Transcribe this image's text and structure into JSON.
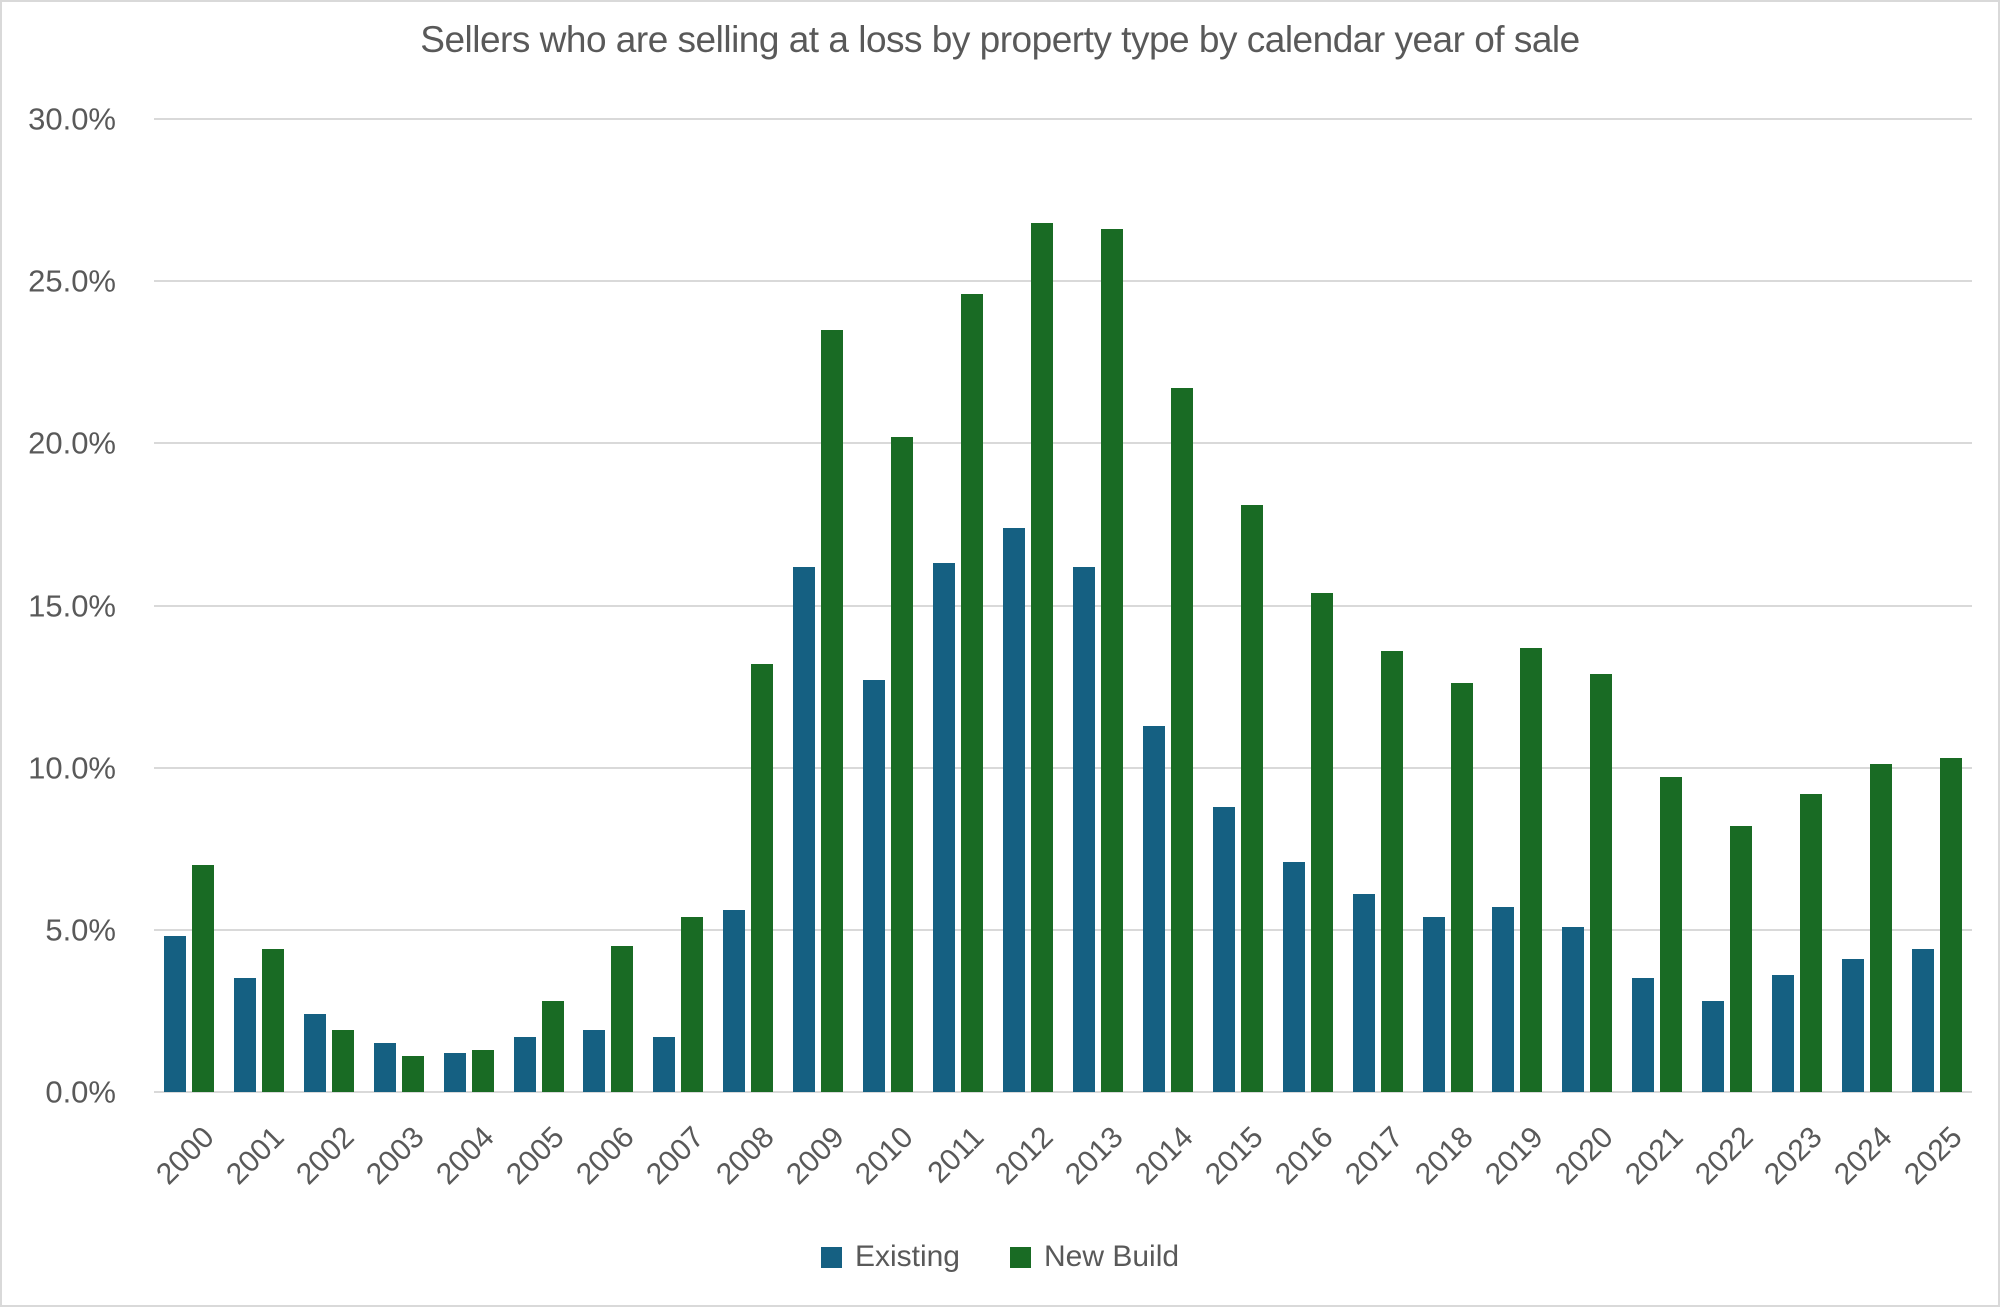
{
  "chart_data": {
    "type": "bar",
    "title": "Sellers who are selling at a loss by property type by calendar year of sale",
    "categories": [
      "2000",
      "2001",
      "2002",
      "2003",
      "2004",
      "2005",
      "2006",
      "2007",
      "2008",
      "2009",
      "2010",
      "2011",
      "2012",
      "2013",
      "2014",
      "2015",
      "2016",
      "2017",
      "2018",
      "2019",
      "2020",
      "2021",
      "2022",
      "2023",
      "2024",
      "2025"
    ],
    "series": [
      {
        "name": "Existing",
        "color": "#156082",
        "values": [
          4.8,
          3.5,
          2.4,
          1.5,
          1.2,
          1.7,
          1.9,
          1.7,
          5.6,
          16.2,
          12.7,
          16.3,
          17.4,
          16.2,
          11.3,
          8.8,
          7.1,
          6.1,
          5.4,
          5.7,
          5.1,
          3.5,
          2.8,
          3.6,
          4.1,
          4.4
        ]
      },
      {
        "name": "New Build",
        "color": "#196B24",
        "values": [
          7.0,
          4.4,
          1.9,
          1.1,
          1.3,
          2.8,
          4.5,
          5.4,
          13.2,
          23.5,
          20.2,
          24.6,
          26.8,
          26.6,
          21.7,
          18.1,
          15.4,
          13.6,
          12.6,
          13.7,
          12.9,
          9.7,
          8.2,
          9.2,
          10.1,
          10.3
        ]
      }
    ],
    "xlabel": "",
    "ylabel": "",
    "ylim": [
      0,
      30
    ],
    "y_tick_step": 5,
    "y_tick_labels": [
      "30.0%",
      "25.0%",
      "20.0%",
      "15.0%",
      "10.0%",
      "5.0%",
      "0.0%"
    ],
    "grid": true,
    "legend_position": "bottom"
  },
  "style": {
    "background": "#FFFFFF",
    "border_color": "#D9D9D9",
    "gridline_color": "#D9D9D9",
    "text_color": "#595959"
  }
}
